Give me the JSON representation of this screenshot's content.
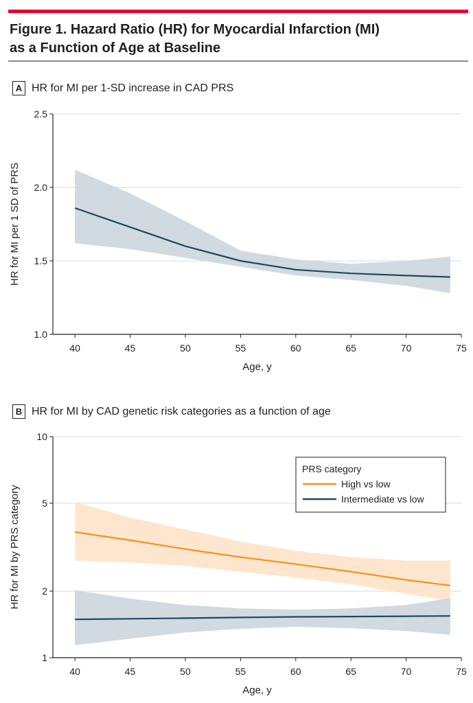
{
  "figure": {
    "title_line1": "Figure 1. Hazard Ratio (HR) for Myocardial Infarction (MI)",
    "title_line2": "as a Function of Age at Baseline"
  },
  "colors": {
    "accent_red": "#e4002b",
    "navy": "#1d4a5a",
    "navy_band": "#c8d3da",
    "orange": "#f5911e",
    "orange_band": "#fde2c4",
    "grid": "#d9d9d9"
  },
  "chart_data": [
    {
      "panel": "A",
      "type": "line",
      "title": "HR for MI per 1-SD increase in CAD PRS",
      "xlabel": "Age, y",
      "ylabel": "HR for MI per 1 SD of PRS",
      "xlim": [
        38,
        75
      ],
      "ylim": [
        1.0,
        2.5
      ],
      "x_ticks": [
        "40",
        "45",
        "50",
        "55",
        "60",
        "65",
        "70",
        "75"
      ],
      "y_ticks": [
        "1.0",
        "1.5",
        "2.0",
        "2.5"
      ],
      "y_tick_values": [
        1.0,
        1.5,
        2.0,
        2.5
      ],
      "grid": true,
      "series": [
        {
          "color": "#1d4a5a",
          "band_color": "#c8d3da",
          "x": [
            40,
            45,
            50,
            55,
            60,
            65,
            70,
            74
          ],
          "y": [
            1.86,
            1.73,
            1.6,
            1.5,
            1.44,
            1.415,
            1.4,
            1.39
          ],
          "lower": [
            1.62,
            1.58,
            1.52,
            1.46,
            1.4,
            1.37,
            1.33,
            1.28
          ],
          "upper": [
            2.12,
            1.96,
            1.77,
            1.57,
            1.51,
            1.48,
            1.5,
            1.53
          ]
        }
      ]
    },
    {
      "panel": "B",
      "type": "line",
      "title": "HR for MI by CAD genetic risk categories as a function of age",
      "xlabel": "Age, y",
      "ylabel": "HR for MI by PRS category",
      "xlim": [
        38,
        75
      ],
      "ylim": [
        1,
        10
      ],
      "yscale": "log",
      "x_ticks": [
        "40",
        "45",
        "50",
        "55",
        "60",
        "65",
        "70",
        "75"
      ],
      "y_ticks": [
        "1",
        "2",
        "5",
        "10"
      ],
      "y_tick_values": [
        1,
        2,
        5,
        10
      ],
      "grid": true,
      "legend": {
        "title": "PRS category",
        "position": "top-right"
      },
      "series": [
        {
          "name": "High vs low",
          "color": "#f5911e",
          "band_color": "#fde2c4",
          "x": [
            40,
            45,
            50,
            55,
            60,
            65,
            70,
            74
          ],
          "y": [
            3.7,
            3.4,
            3.1,
            2.85,
            2.65,
            2.45,
            2.25,
            2.12
          ],
          "lower": [
            2.75,
            2.7,
            2.6,
            2.45,
            2.3,
            2.15,
            1.95,
            1.8
          ],
          "upper": [
            5.05,
            4.3,
            3.8,
            3.35,
            3.05,
            2.85,
            2.75,
            2.75
          ]
        },
        {
          "name": "Intermediate vs low",
          "color": "#1d4a5a",
          "band_color": "#c8d3da",
          "x": [
            40,
            45,
            50,
            55,
            60,
            65,
            70,
            74
          ],
          "y": [
            1.49,
            1.5,
            1.51,
            1.52,
            1.53,
            1.535,
            1.54,
            1.545
          ],
          "lower": [
            1.14,
            1.22,
            1.3,
            1.35,
            1.38,
            1.36,
            1.32,
            1.27
          ],
          "upper": [
            2.02,
            1.85,
            1.73,
            1.67,
            1.65,
            1.67,
            1.73,
            1.86
          ]
        }
      ]
    }
  ]
}
